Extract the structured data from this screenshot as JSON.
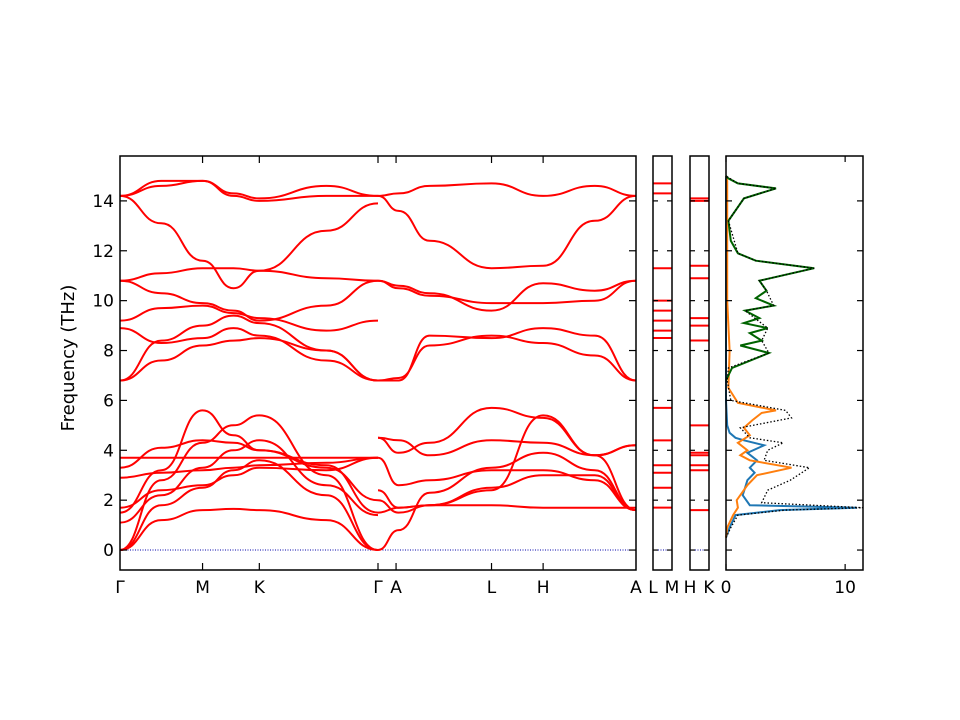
{
  "chart_data": [
    {
      "type": "line",
      "panel": "band-structure-main",
      "ylabel": "Frequency (THz)",
      "ylim": [
        -0.8,
        15.8
      ],
      "yticks": [
        0,
        2,
        4,
        6,
        8,
        10,
        12,
        14
      ],
      "ytick_labels": [
        "0",
        "2",
        "4",
        "6",
        "8",
        "10",
        "12",
        "14"
      ],
      "grid": false,
      "line_color": "#ff0000",
      "zero_line_color": "#0000aa",
      "segments": [
        {
          "xticks": [
            0,
            0.16,
            0.27,
            0.5
          ],
          "xtick_labels": [
            "Γ",
            "M",
            "K",
            "Γ"
          ],
          "bands": [
            {
              "x": [
                0,
                0.08,
                0.16,
                0.22,
                0.27,
                0.4,
                0.5
              ],
              "y": [
                0,
                0,
                0,
                0,
                0,
                0,
                0
              ]
            },
            {
              "x": [
                0,
                0.08,
                0.16,
                0.22,
                0.27,
                0.4,
                0.5
              ],
              "y": [
                0,
                1.2,
                1.6,
                1.65,
                1.6,
                1.2,
                0
              ]
            },
            {
              "x": [
                0,
                0.08,
                0.16,
                0.22,
                0.27,
                0.4,
                0.5
              ],
              "y": [
                0,
                1.8,
                2.5,
                3.2,
                3.6,
                2.2,
                0
              ]
            },
            {
              "x": [
                0,
                0.08,
                0.16,
                0.22,
                0.27,
                0.4,
                0.5
              ],
              "y": [
                0,
                2.8,
                4.3,
                5.0,
                5.4,
                3.0,
                0
              ]
            },
            {
              "x": [
                0,
                0.08,
                0.16,
                0.22,
                0.27,
                0.4,
                0.5
              ],
              "y": [
                1.1,
                2.2,
                3.3,
                4.0,
                4.4,
                2.6,
                1.4
              ]
            },
            {
              "x": [
                0,
                0.08,
                0.16,
                0.22,
                0.27,
                0.4,
                0.5
              ],
              "y": [
                1.5,
                3.2,
                5.6,
                4.6,
                4.0,
                3.4,
                1.5
              ]
            },
            {
              "x": [
                0,
                0.08,
                0.16,
                0.22,
                0.27,
                0.4,
                0.5
              ],
              "y": [
                1.7,
                2.4,
                2.6,
                3.0,
                3.3,
                3.2,
                3.7
              ]
            },
            {
              "x": [
                0,
                0.08,
                0.16,
                0.22,
                0.27,
                0.4,
                0.5
              ],
              "y": [
                2.9,
                3.1,
                3.2,
                3.3,
                3.4,
                3.5,
                3.7
              ]
            },
            {
              "x": [
                0,
                0.08,
                0.16,
                0.22,
                0.27,
                0.4,
                0.5
              ],
              "y": [
                3.7,
                3.7,
                3.7,
                3.7,
                3.7,
                3.7,
                3.7
              ]
            },
            {
              "x": [
                0,
                0.08,
                0.16,
                0.22,
                0.27,
                0.4,
                0.5
              ],
              "y": [
                3.3,
                4.1,
                4.4,
                4.3,
                4.0,
                3.3,
                2.0
              ]
            },
            {
              "x": [
                0,
                0.08,
                0.16,
                0.22,
                0.27,
                0.4,
                0.5
              ],
              "y": [
                6.8,
                7.6,
                8.2,
                8.4,
                8.5,
                8.0,
                6.8
              ]
            },
            {
              "x": [
                0,
                0.08,
                0.16,
                0.22,
                0.27,
                0.4,
                0.5
              ],
              "y": [
                6.8,
                8.4,
                9.0,
                9.4,
                9.1,
                8.0,
                6.8
              ]
            },
            {
              "x": [
                0,
                0.08,
                0.16,
                0.22,
                0.27,
                0.4,
                0.5
              ],
              "y": [
                8.9,
                8.3,
                8.5,
                8.9,
                8.6,
                7.6,
                6.8
              ]
            },
            {
              "x": [
                0,
                0.08,
                0.16,
                0.22,
                0.27,
                0.4,
                0.5
              ],
              "y": [
                9.2,
                9.7,
                9.8,
                9.5,
                9.3,
                8.8,
                9.2
              ]
            },
            {
              "x": [
                0,
                0.08,
                0.16,
                0.22,
                0.27,
                0.4,
                0.5
              ],
              "y": [
                10.8,
                10.3,
                9.9,
                9.6,
                9.2,
                9.8,
                10.8
              ]
            },
            {
              "x": [
                0,
                0.08,
                0.16,
                0.22,
                0.27,
                0.4,
                0.5
              ],
              "y": [
                10.8,
                11.1,
                11.3,
                11.3,
                11.2,
                10.9,
                10.8
              ]
            },
            {
              "x": [
                0,
                0.08,
                0.16,
                0.22,
                0.27,
                0.4,
                0.5
              ],
              "y": [
                14.2,
                13.1,
                11.6,
                10.5,
                11.2,
                12.8,
                13.9
              ]
            },
            {
              "x": [
                0,
                0.08,
                0.16,
                0.22,
                0.27,
                0.4,
                0.5
              ],
              "y": [
                14.2,
                14.6,
                14.8,
                14.3,
                14.1,
                14.6,
                14.2
              ]
            },
            {
              "x": [
                0,
                0.08,
                0.16,
                0.22,
                0.27,
                0.4,
                0.5
              ],
              "y": [
                14.2,
                14.8,
                14.8,
                14.2,
                14.0,
                14.2,
                14.2
              ]
            }
          ]
        },
        {
          "xticks": [
            0.5,
            0.535,
            0.72,
            0.82,
            1.0
          ],
          "xtick_labels": [
            "A",
            "L",
            "H",
            "A"
          ],
          "bands": [
            {
              "x": [
                0.5,
                0.54,
                0.6,
                0.72,
                0.82,
                0.92,
                1.0
              ],
              "y": [
                4.5,
                4.4,
                3.8,
                4.4,
                4.3,
                3.8,
                4.2
              ]
            },
            {
              "x": [
                0.5,
                0.54,
                0.6,
                0.72,
                0.82,
                0.92,
                1.0
              ],
              "y": [
                4.5,
                3.9,
                4.3,
                5.7,
                5.3,
                3.8,
                4.2
              ]
            },
            {
              "x": [
                0.5,
                0.54,
                0.6,
                0.72,
                0.82,
                0.92,
                1.0
              ],
              "y": [
                0,
                0.8,
                2.3,
                3.3,
                3.9,
                3.2,
                1.6
              ]
            },
            {
              "x": [
                0.5,
                0.54,
                0.6,
                0.72,
                0.82,
                0.92,
                1.0
              ],
              "y": [
                2.4,
                1.7,
                1.8,
                2.5,
                3.0,
                3.0,
                1.6
              ]
            },
            {
              "x": [
                0.5,
                0.54,
                0.6,
                0.72,
                0.82,
                0.92,
                1.0
              ],
              "y": [
                2.0,
                1.5,
                1.8,
                2.4,
                5.4,
                3.8,
                1.6
              ]
            },
            {
              "x": [
                0.5,
                0.54,
                0.6,
                0.72,
                0.82,
                0.92,
                1.0
              ],
              "y": [
                1.5,
                1.7,
                1.8,
                1.8,
                1.7,
                1.7,
                1.7
              ]
            },
            {
              "x": [
                0.5,
                0.54,
                0.6,
                0.72,
                0.82,
                0.92,
                1.0
              ],
              "y": [
                3.7,
                2.6,
                2.8,
                3.2,
                3.2,
                2.8,
                1.6
              ]
            },
            {
              "x": [
                0.5,
                0.54,
                0.6,
                0.72,
                0.82,
                0.92,
                1.0
              ],
              "y": [
                6.8,
                6.8,
                8.6,
                8.5,
                8.9,
                8.6,
                6.8
              ]
            },
            {
              "x": [
                0.5,
                0.54,
                0.6,
                0.72,
                0.82,
                0.92,
                1.0
              ],
              "y": [
                6.8,
                6.9,
                8.2,
                8.6,
                8.3,
                7.8,
                6.8
              ]
            },
            {
              "x": [
                0.5,
                0.54,
                0.6,
                0.72,
                0.82,
                0.92,
                1.0
              ],
              "y": [
                10.8,
                10.5,
                10.2,
                9.9,
                9.9,
                10.0,
                10.8
              ]
            },
            {
              "x": [
                0.5,
                0.54,
                0.6,
                0.72,
                0.82,
                0.92,
                1.0
              ],
              "y": [
                10.8,
                10.6,
                10.3,
                9.6,
                10.7,
                10.4,
                10.8
              ]
            },
            {
              "x": [
                0.5,
                0.54,
                0.6,
                0.72,
                0.82,
                0.92,
                1.0
              ],
              "y": [
                14.2,
                13.6,
                12.4,
                11.3,
                11.4,
                13.2,
                14.2
              ]
            },
            {
              "x": [
                0.5,
                0.54,
                0.6,
                0.72,
                0.82,
                0.92,
                1.0
              ],
              "y": [
                14.2,
                14.3,
                14.6,
                14.7,
                14.2,
                14.6,
                14.2
              ]
            },
            {
              "x": [
                0.5,
                0.54,
                0.6,
                0.72,
                0.82,
                0.92,
                1.0
              ],
              "y": [
                0,
                0,
                0,
                0,
                0,
                0,
                0
              ]
            }
          ]
        }
      ]
    },
    {
      "type": "line",
      "panel": "band-structure-LM",
      "xtick_labels": [
        "L",
        "M"
      ],
      "ylim": [
        -0.8,
        15.8
      ],
      "levels": [
        0,
        1.7,
        2.5,
        3.1,
        3.4,
        4.4,
        5.7,
        8.5,
        8.8,
        9.2,
        9.6,
        10.0,
        11.3,
        14.3,
        14.7
      ]
    },
    {
      "type": "line",
      "panel": "band-structure-HK",
      "xtick_labels": [
        "H",
        "K"
      ],
      "ylim": [
        -0.8,
        15.8
      ],
      "levels": [
        0,
        1.6,
        3.2,
        3.4,
        3.8,
        3.9,
        5.0,
        8.4,
        9.0,
        9.3,
        10.9,
        11.4,
        14.0,
        14.1
      ]
    },
    {
      "type": "line",
      "panel": "phonon-dos",
      "xlim": [
        0,
        11.5
      ],
      "xticks": [
        0,
        10
      ],
      "xtick_labels": [
        "0",
        "10"
      ],
      "ylim": [
        -0.8,
        15.8
      ],
      "series": [
        {
          "color": "#1f77b4",
          "x": [
            0.0,
            0.3,
            0.8,
            4.5,
            11.0,
            2.0,
            1.4,
            1.6,
            1.8,
            2.4,
            2.0,
            2.6,
            1.8,
            3.2,
            1.5,
            0.8,
            0.3,
            0.1,
            0.0,
            0.0
          ],
          "y": [
            0.5,
            0.9,
            1.4,
            1.6,
            1.7,
            1.8,
            2.2,
            2.5,
            2.8,
            3.1,
            3.3,
            3.6,
            3.9,
            4.2,
            4.4,
            4.5,
            4.7,
            5.0,
            6.0,
            15.0
          ]
        },
        {
          "color": "#ff7f0e",
          "x": [
            0.0,
            0.1,
            0.6,
            1.0,
            0.9,
            1.8,
            2.6,
            5.5,
            2.0,
            1.2,
            1.8,
            1.0,
            2.0,
            1.5,
            2.2,
            3.0,
            4.2,
            1.0,
            0.2,
            0.3,
            0.1,
            0.1,
            0.0
          ],
          "y": [
            0.5,
            0.9,
            1.4,
            1.7,
            2.0,
            2.6,
            3.0,
            3.3,
            3.6,
            3.8,
            4.0,
            4.3,
            4.6,
            4.9,
            5.2,
            5.5,
            5.6,
            5.9,
            6.5,
            8.0,
            10.0,
            14.8,
            15.0
          ]
        },
        {
          "color": "#006400",
          "x": [
            0.0,
            0.1,
            0.5,
            3.6,
            1.2,
            3.0,
            2.0,
            3.5,
            1.5,
            2.8,
            1.6,
            4.0,
            2.5,
            3.4,
            2.8,
            7.4,
            2.5,
            1.0,
            0.4,
            0.2,
            1.5,
            4.2,
            1.0,
            0.2,
            0.0
          ],
          "y": [
            6.8,
            6.9,
            7.3,
            7.9,
            8.2,
            8.4,
            8.7,
            8.9,
            9.1,
            9.3,
            9.6,
            9.8,
            10.1,
            10.4,
            10.8,
            11.3,
            11.6,
            11.9,
            12.4,
            13.2,
            14.1,
            14.5,
            14.7,
            14.9,
            15.0
          ]
        },
        {
          "color": "#000000",
          "dotted": true,
          "x": [
            0.0,
            0.4,
            1.0,
            5.0,
            11.5,
            3.0,
            3.5,
            5.4,
            7.0,
            3.2,
            3.5,
            4.8,
            2.0,
            1.2,
            5.5,
            5.0,
            0.4,
            0.1,
            0.2,
            3.6,
            3.0,
            3.5,
            1.6,
            4.0,
            3.4,
            2.8,
            7.4,
            2.5,
            1.0,
            0.2,
            1.5,
            4.2,
            1.0,
            0.0
          ],
          "y": [
            0.5,
            0.9,
            1.4,
            1.6,
            1.7,
            1.9,
            2.4,
            2.8,
            3.3,
            3.6,
            4.0,
            4.3,
            4.5,
            4.9,
            5.3,
            5.6,
            6.0,
            6.8,
            7.3,
            7.9,
            8.4,
            8.9,
            9.6,
            9.8,
            10.4,
            10.8,
            11.3,
            11.6,
            11.9,
            13.2,
            14.1,
            14.5,
            14.7,
            15.0
          ]
        }
      ]
    }
  ]
}
